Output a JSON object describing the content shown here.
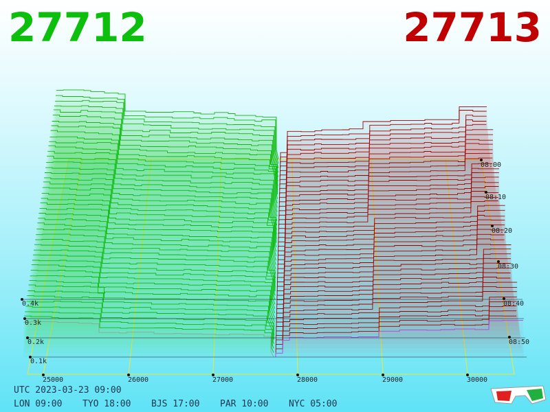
{
  "header": {
    "bid": "27712",
    "ask": "27713"
  },
  "price_labels": [
    "25000",
    "26000",
    "27000",
    "28000",
    "29000",
    "30000"
  ],
  "volume_labels": [
    "0.4k",
    "0.3k",
    "0.2k",
    "0.1k"
  ],
  "time_labels": [
    "08:00",
    "08:10",
    "08:20",
    "08:30",
    "08:40",
    "08:50"
  ],
  "footer": {
    "utc": "UTC 2023-03-23 09:00",
    "zones": [
      "LON 09:00",
      "TYO 18:00",
      "BJS 17:00",
      "PAR 10:00",
      "NYC 05:00"
    ]
  }
}
